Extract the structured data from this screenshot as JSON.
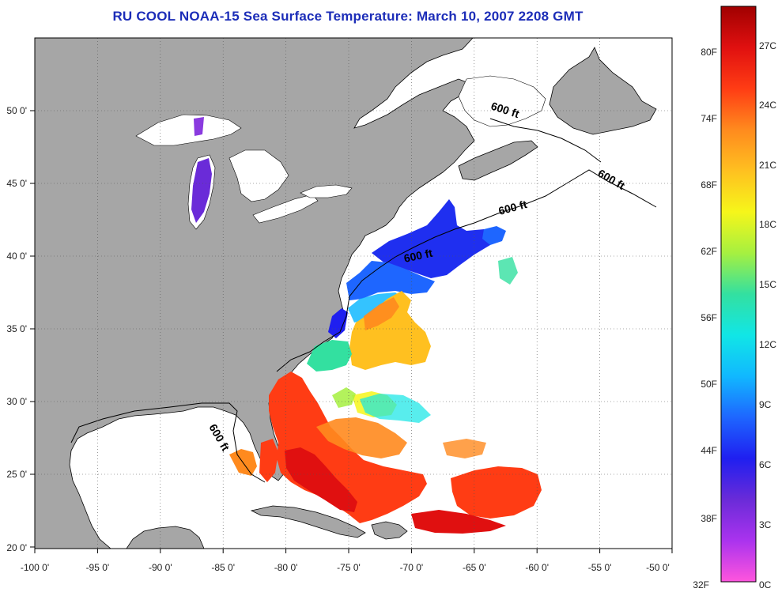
{
  "title": "RU COOL  NOAA-15  Sea Surface Temperature:  March 10, 2007 2208 GMT",
  "map": {
    "lon_labels": [
      "-100 0'",
      "-95 0'",
      "-90 0'",
      "-85 0'",
      "-80 0'",
      "-75 0'",
      "-70 0'",
      "-65 0'",
      "-60 0'",
      "-55 0'",
      "-50 0'"
    ],
    "lat_labels": [
      "50 0'",
      "45 0'",
      "40 0'",
      "35 0'",
      "30 0'",
      "25 0'",
      "20 0'"
    ],
    "contour_label": "600 ft",
    "land_color": "#a6a6a6",
    "ocean_nodata_color": "#ffffff"
  },
  "colorbar": {
    "fahrenheit_labels": [
      "80F",
      "74F",
      "68F",
      "62F",
      "56F",
      "50F",
      "44F",
      "38F",
      "32F"
    ],
    "celsius_labels": [
      "27C",
      "24C",
      "21C",
      "18C",
      "15C",
      "12C",
      "9C",
      "6C",
      "3C",
      "0C"
    ],
    "colors": [
      "#ff55dd",
      "#aa33ee",
      "#6a2bd8",
      "#1f1ff0",
      "#1e66ff",
      "#11b8ff",
      "#11e6e6",
      "#33e0a0",
      "#a6f040",
      "#f6f61a",
      "#ffc020",
      "#ff8a1e",
      "#ff3c14",
      "#e01010",
      "#a00000"
    ]
  }
}
